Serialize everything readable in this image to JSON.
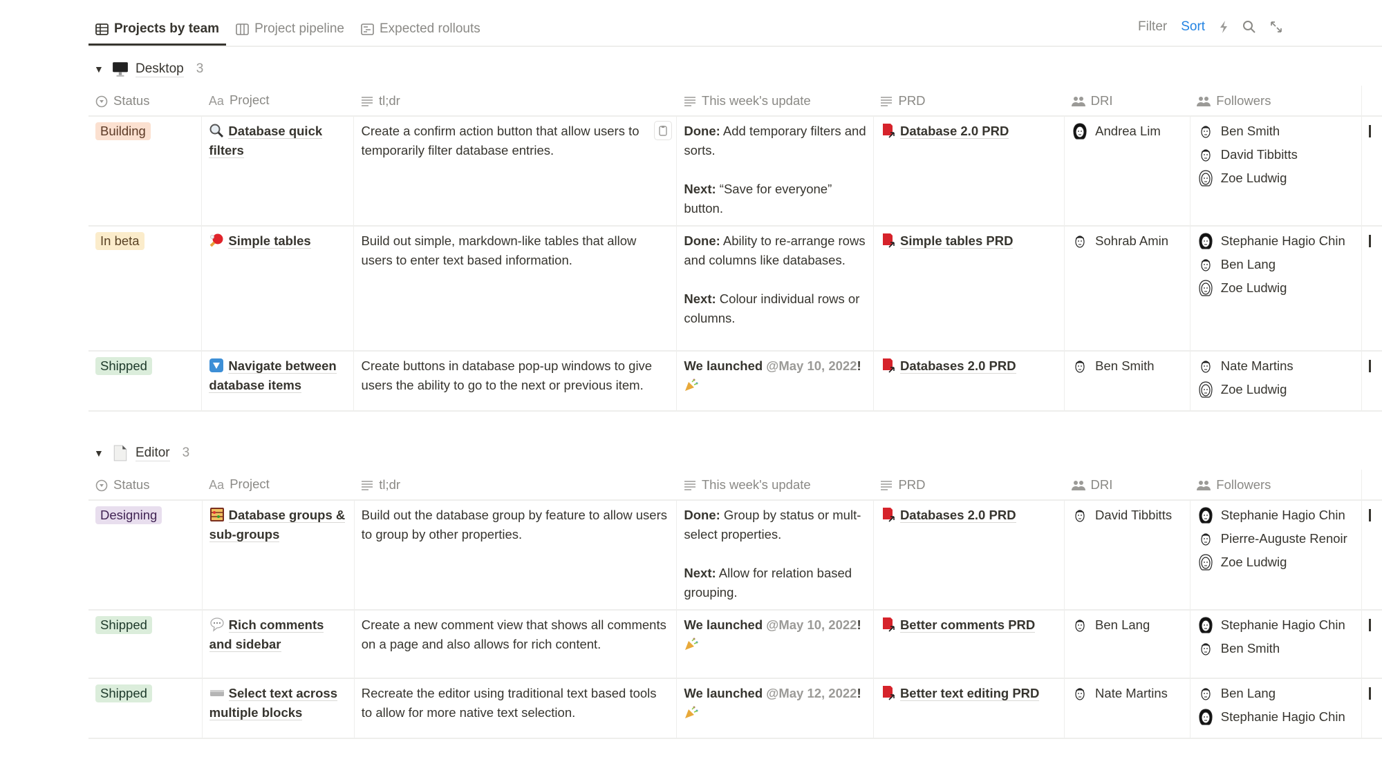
{
  "tabs": [
    {
      "label": "Projects by team",
      "icon": "table-icon",
      "active": true
    },
    {
      "label": "Project pipeline",
      "icon": "board-icon",
      "active": false
    },
    {
      "label": "Expected rollouts",
      "icon": "timeline-icon",
      "active": false
    }
  ],
  "toolbar": {
    "filter": "Filter",
    "sort": "Sort",
    "sort_color": "#2383e2",
    "icons": [
      "lightning-icon",
      "search-icon",
      "expand-icon"
    ]
  },
  "columns": [
    {
      "label": "Status",
      "icon": "status-icon"
    },
    {
      "label": "Project",
      "icon": "title-aa-icon"
    },
    {
      "label": "tl;dr",
      "icon": "text-lines-icon"
    },
    {
      "label": "This week's update",
      "icon": "text-lines-icon"
    },
    {
      "label": "PRD",
      "icon": "text-lines-icon"
    },
    {
      "label": "DRI",
      "icon": "people-icon"
    },
    {
      "label": "Followers",
      "icon": "people-icon"
    }
  ],
  "status_colors": {
    "Building": {
      "bg": "#fbe0d0",
      "fg": "#5c3a26"
    },
    "In beta": {
      "bg": "#fbeccb",
      "fg": "#5a4325"
    },
    "Shipped": {
      "bg": "#dbeddb",
      "fg": "#1c3829"
    },
    "Designing": {
      "bg": "#e8deee",
      "fg": "#412454"
    }
  },
  "groups": [
    {
      "name": "Desktop",
      "icon": "desktop-computer-icon",
      "count": "3",
      "rows": [
        {
          "status": "Building",
          "icon": "magnifier-icon",
          "project": "Database quick filters",
          "tldr": "Create a confirm action button that allow users to temporarily filter database entries.",
          "update": [
            {
              "label": "Done:",
              "text": " Add temporary filters and sorts."
            },
            {
              "label": "Next:",
              "text": " “Save for everyone” button."
            }
          ],
          "prd": "Database 2.0 PRD",
          "dri": "Andrea Lim",
          "followers": [
            "Ben Smith",
            "David Tibbitts",
            "Zoe Ludwig"
          ]
        },
        {
          "status": "In beta",
          "icon": "ping-pong-icon",
          "project": "Simple tables",
          "tldr": "Build out simple, markdown-like tables that allow users to enter text based information.",
          "update": [
            {
              "label": "Done:",
              "text": " Ability to re-arrange rows and columns like databases."
            },
            {
              "label": "Next:",
              "text": " Colour individual rows or columns."
            }
          ],
          "prd": "Simple tables PRD",
          "dri": "Sohrab Amin",
          "followers": [
            "Stephanie Hagio Chin",
            "Ben Lang",
            "Zoe Ludwig"
          ]
        },
        {
          "status": "Shipped",
          "icon": "down-button-icon",
          "project": "Navigate between database items",
          "tldr": "Create buttons in database pop-up windows to give users the ability to go to the next or previous item.",
          "launch": {
            "label": "We launched",
            "mention": "@May 10, 2022",
            "suffix": "!",
            "emoji": "party-popper-icon"
          },
          "prd": "Databases 2.0 PRD",
          "dri": "Ben Smith",
          "followers": [
            "Nate Martins",
            "Zoe Ludwig"
          ]
        }
      ]
    },
    {
      "name": "Editor",
      "icon": "page-icon",
      "count": "3",
      "rows": [
        {
          "status": "Designing",
          "icon": "abacus-icon",
          "project": "Database groups & sub-groups",
          "tldr": "Build out the database group by feature to allow users to group by other properties.",
          "update": [
            {
              "label": "Done:",
              "text": " Group by status or mult-select properties."
            },
            {
              "label": "Next:",
              "text": " Allow for relation based grouping."
            }
          ],
          "prd": "Databases 2.0 PRD",
          "dri": "David Tibbitts",
          "followers": [
            "Stephanie Hagio Chin",
            "Pierre-Auguste Renoir",
            "Zoe Ludwig"
          ]
        },
        {
          "status": "Shipped",
          "icon": "speech-bubble-icon",
          "project": "Rich comments and sidebar",
          "tldr": "Create a new comment view that shows all comments on a page and also allows for rich content.",
          "launch": {
            "label": "We launched",
            "mention": "@May 10, 2022",
            "suffix": "!",
            "emoji": "party-popper-icon"
          },
          "prd": "Better comments PRD",
          "dri": "Ben Lang",
          "followers": [
            "Stephanie Hagio Chin",
            "Ben Smith"
          ]
        },
        {
          "status": "Shipped",
          "icon": "keyboard-icon",
          "project": "Select text across multiple blocks",
          "tldr": "Recreate the editor using traditional text based tools to allow for more native text selection.",
          "launch": {
            "label": "We launched",
            "mention": "@May 12, 2022",
            "suffix": "!",
            "emoji": "party-popper-icon"
          },
          "prd": "Better text editing PRD",
          "dri": "Nate Martins",
          "followers": [
            "Ben Lang",
            "Stephanie Hagio Chin"
          ]
        }
      ]
    }
  ]
}
